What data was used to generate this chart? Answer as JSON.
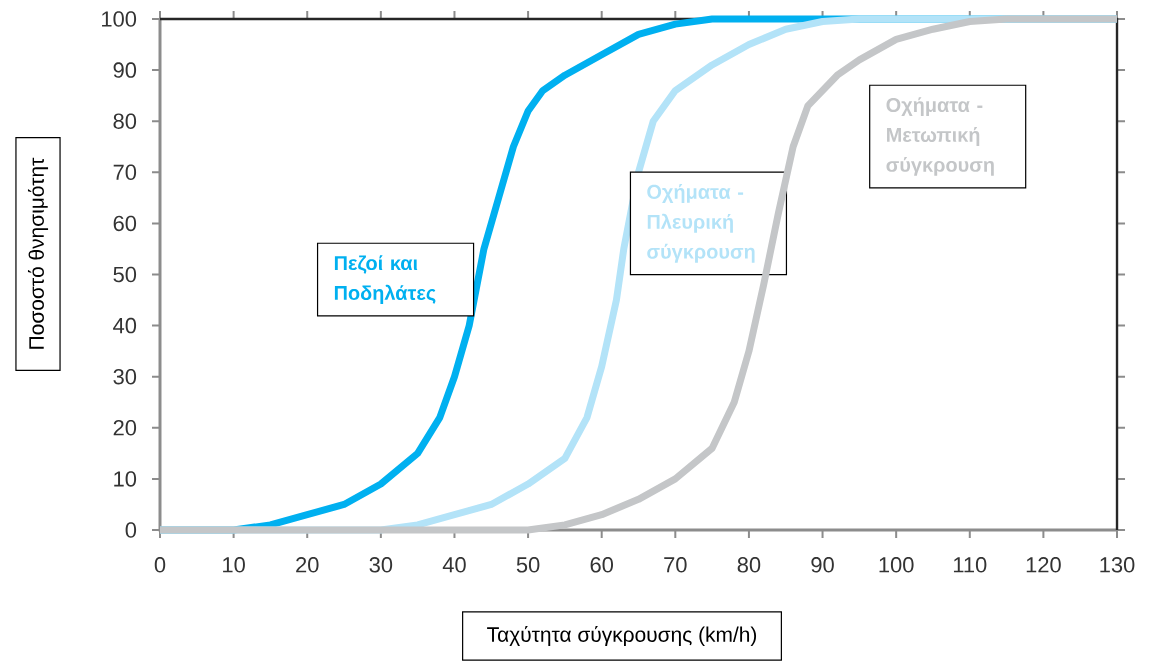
{
  "chart_data": {
    "type": "line",
    "xlabel": "Ταχύτητα σύγκρουσης (km/h)",
    "ylabel": "Ποσοστό θνησιμότητ",
    "xlim": [
      0,
      130
    ],
    "ylim": [
      0,
      100
    ],
    "xticks": [
      0,
      10,
      20,
      30,
      40,
      50,
      60,
      70,
      80,
      90,
      100,
      110,
      120,
      130
    ],
    "yticks": [
      0,
      10,
      20,
      30,
      40,
      50,
      60,
      70,
      80,
      90,
      100
    ],
    "grid": false,
    "marker": "none",
    "line_style": "solid",
    "series": [
      {
        "name": "Πεζοί και Ποδηλάτες",
        "color": "#00b0f0",
        "x": [
          0,
          10,
          15,
          20,
          25,
          30,
          35,
          38,
          40,
          42,
          44,
          46,
          48,
          50,
          52,
          55,
          60,
          65,
          70,
          75,
          130
        ],
        "values": [
          0,
          0,
          1,
          3,
          5,
          9,
          15,
          22,
          30,
          40,
          55,
          65,
          75,
          82,
          86,
          89,
          93,
          97,
          99,
          100,
          100
        ]
      },
      {
        "name": "Οχήματα - Πλευρική σύγκρουση",
        "color": "#b3e3f8",
        "x": [
          0,
          30,
          35,
          40,
          45,
          50,
          55,
          58,
          60,
          62,
          63,
          65,
          67,
          70,
          75,
          80,
          85,
          90,
          95,
          130
        ],
        "values": [
          0,
          0,
          1,
          3,
          5,
          9,
          14,
          22,
          32,
          45,
          55,
          70,
          80,
          86,
          91,
          95,
          98,
          99.5,
          100,
          100
        ]
      },
      {
        "name": "Οχήματα - Μετωπική σύγκρουση",
        "color": "#c4c6c8",
        "x": [
          0,
          50,
          55,
          60,
          65,
          70,
          75,
          78,
          80,
          82,
          84,
          86,
          88,
          92,
          95,
          100,
          105,
          110,
          115,
          130
        ],
        "values": [
          0,
          0,
          1,
          3,
          6,
          10,
          16,
          25,
          35,
          48,
          62,
          75,
          83,
          89,
          92,
          96,
          98,
          99.5,
          100,
          100
        ]
      }
    ]
  }
}
